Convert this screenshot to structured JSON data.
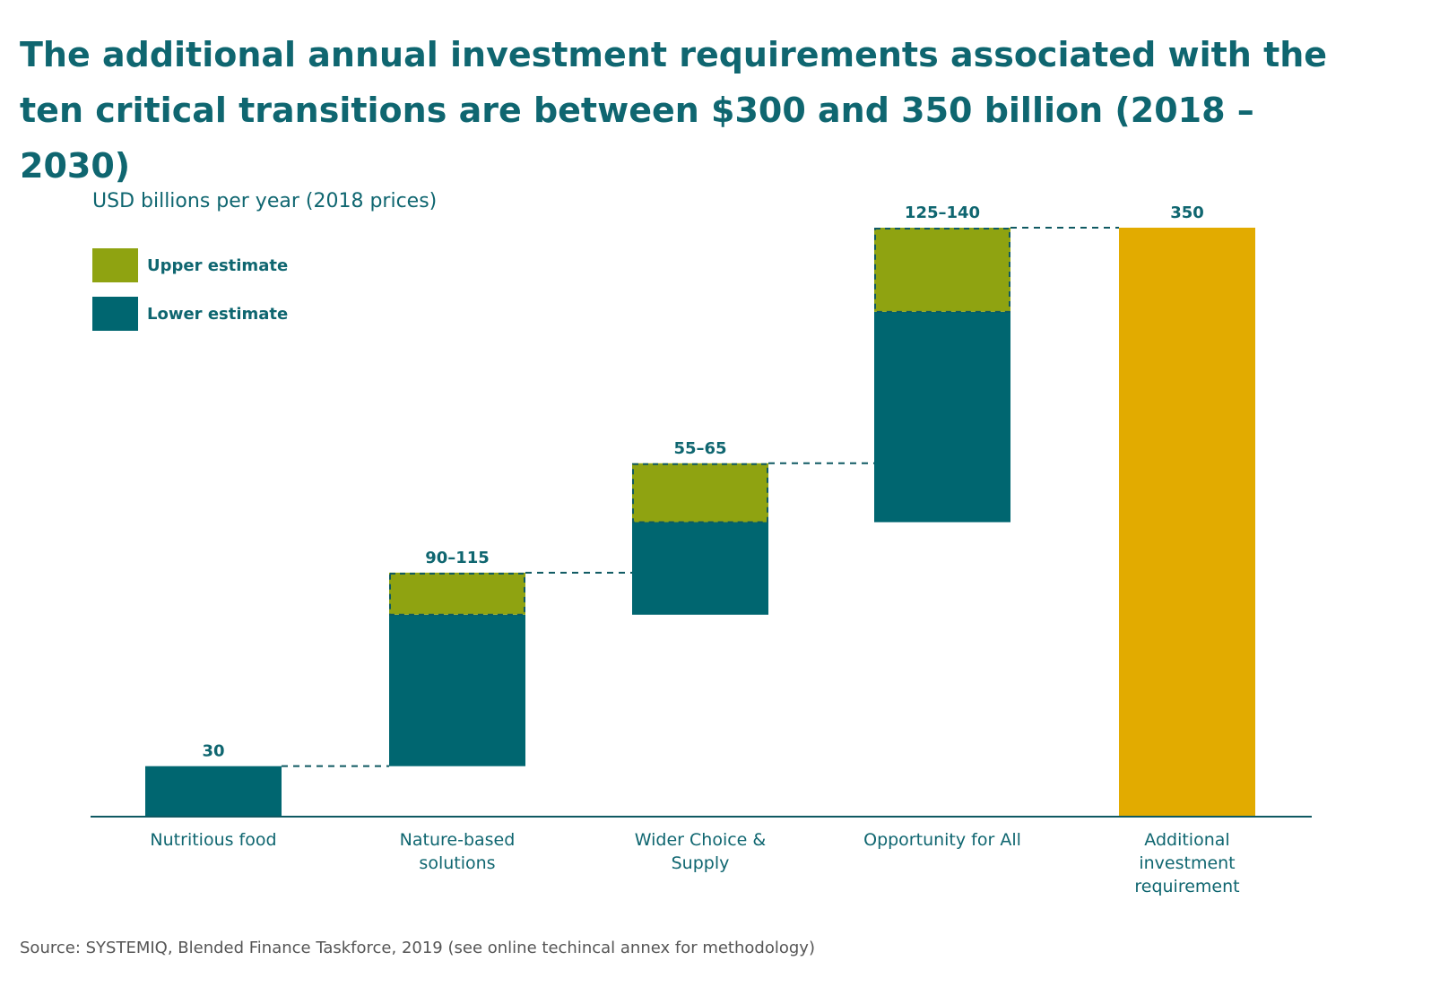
{
  "title": "The additional annual investment requirements associated with the ten critical transitions are between $300 and 350 billion (2018 – 2030)",
  "subtitle": "USD billions per year (2018 prices)",
  "legend": [
    {
      "label": "Upper estimate",
      "color": "#8fa311"
    },
    {
      "label": "Lower estimate",
      "color": "#006670"
    }
  ],
  "source": "Source: SYSTEMIQ, Blended Finance Taskforce, 2019 (see online techincal annex for methodology)",
  "chart_data": {
    "type": "bar",
    "subtype": "waterfall",
    "ylim": [
      0,
      350
    ],
    "categories": [
      [
        "Nutritious food"
      ],
      [
        "Nature-based",
        "solutions"
      ],
      [
        "Wider Choice &",
        "Supply"
      ],
      [
        "Opportunity for All"
      ],
      [
        "Additional",
        "investment",
        "requirement"
      ]
    ],
    "bars": [
      {
        "kind": "step",
        "label": "30",
        "lower": 30,
        "upper": 30
      },
      {
        "kind": "step",
        "label": "90–115",
        "lower": 90,
        "upper": 115
      },
      {
        "kind": "step",
        "label": "55–65",
        "lower": 55,
        "upper": 65
      },
      {
        "kind": "step",
        "label": "125–140",
        "lower": 125,
        "upper": 140
      },
      {
        "kind": "total",
        "label": "350",
        "value": 350
      }
    ],
    "colors": {
      "lower": "#006670",
      "upper": "#8fa311",
      "total": "#e2ab00",
      "axis": "#0f5962",
      "connector": "#0f5962"
    }
  }
}
